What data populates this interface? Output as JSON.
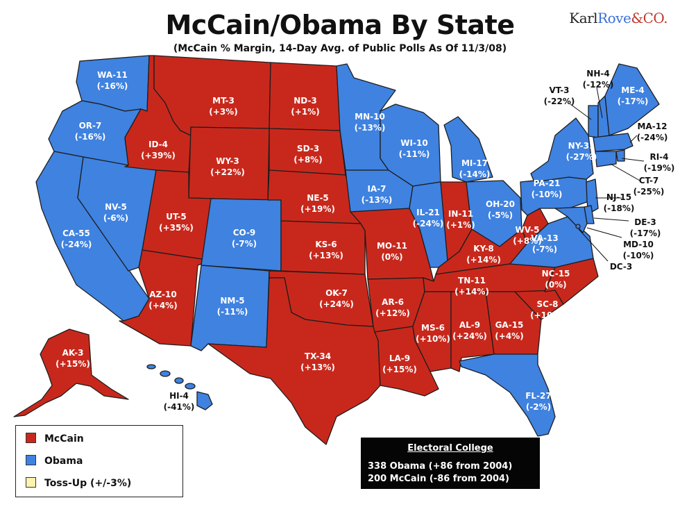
{
  "header": {
    "title": "McCain/Obama By State",
    "subtitle": "(McCain % Margin, 14-Day Avg. of Public Polls As Of 11/3/08)",
    "brand_a": "Karl",
    "brand_b": "Rove",
    "brand_c": "&CO."
  },
  "colors": {
    "mccain": "#c8281c",
    "obama": "#3f82e0",
    "tossup": "#fdf3b0"
  },
  "states": {
    "wa": {
      "label": "WA-11",
      "margin": "(-16%)",
      "winner": "obama"
    },
    "or": {
      "label": "OR-7",
      "margin": "(-16%)",
      "winner": "obama"
    },
    "ca": {
      "label": "CA-55",
      "margin": "(-24%)",
      "winner": "obama"
    },
    "nv": {
      "label": "NV-5",
      "margin": "(-6%)",
      "winner": "obama"
    },
    "id": {
      "label": "ID-4",
      "margin": "(+39%)",
      "winner": "mccain"
    },
    "mt": {
      "label": "MT-3",
      "margin": "(+3%)",
      "winner": "mccain"
    },
    "wy": {
      "label": "WY-3",
      "margin": "(+22%)",
      "winner": "mccain"
    },
    "ut": {
      "label": "UT-5",
      "margin": "(+35%)",
      "winner": "mccain"
    },
    "az": {
      "label": "AZ-10",
      "margin": "(+4%)",
      "winner": "mccain"
    },
    "co": {
      "label": "CO-9",
      "margin": "(-7%)",
      "winner": "obama"
    },
    "nm": {
      "label": "NM-5",
      "margin": "(-11%)",
      "winner": "obama"
    },
    "nd": {
      "label": "ND-3",
      "margin": "(+1%)",
      "winner": "mccain"
    },
    "sd": {
      "label": "SD-3",
      "margin": "(+8%)",
      "winner": "mccain"
    },
    "ne": {
      "label": "NE-5",
      "margin": "(+19%)",
      "winner": "mccain"
    },
    "ks": {
      "label": "KS-6",
      "margin": "(+13%)",
      "winner": "mccain"
    },
    "ok": {
      "label": "OK-7",
      "margin": "(+24%)",
      "winner": "mccain"
    },
    "tx": {
      "label": "TX-34",
      "margin": "(+13%)",
      "winner": "mccain"
    },
    "mn": {
      "label": "MN-10",
      "margin": "(-13%)",
      "winner": "obama"
    },
    "ia": {
      "label": "IA-7",
      "margin": "(-13%)",
      "winner": "obama"
    },
    "mo": {
      "label": "MO-11",
      "margin": "(0%)",
      "winner": "mccain"
    },
    "ar": {
      "label": "AR-6",
      "margin": "(+12%)",
      "winner": "mccain"
    },
    "la": {
      "label": "LA-9",
      "margin": "(+15%)",
      "winner": "mccain"
    },
    "wi": {
      "label": "WI-10",
      "margin": "(-11%)",
      "winner": "obama"
    },
    "il": {
      "label": "IL-21",
      "margin": "(-24%)",
      "winner": "obama"
    },
    "mi": {
      "label": "MI-17",
      "margin": "(-14%)",
      "winner": "obama"
    },
    "in": {
      "label": "IN-11",
      "margin": "(+1%)",
      "winner": "mccain"
    },
    "oh": {
      "label": "OH-20",
      "margin": "(-5%)",
      "winner": "obama"
    },
    "ky": {
      "label": "KY-8",
      "margin": "(+14%)",
      "winner": "mccain"
    },
    "tn": {
      "label": "TN-11",
      "margin": "(+14%)",
      "winner": "mccain"
    },
    "ms": {
      "label": "MS-6",
      "margin": "(+10%)",
      "winner": "mccain"
    },
    "al": {
      "label": "AL-9",
      "margin": "(+24%)",
      "winner": "mccain"
    },
    "ga": {
      "label": "GA-15",
      "margin": "(+4%)",
      "winner": "mccain"
    },
    "fl": {
      "label": "FL-27",
      "margin": "(-2%)",
      "winner": "obama"
    },
    "sc": {
      "label": "SC-8",
      "margin": "(+10%)",
      "winner": "mccain"
    },
    "nc": {
      "label": "NC-15",
      "margin": "(0%)",
      "winner": "mccain"
    },
    "va": {
      "label": "VA-13",
      "margin": "(-7%)",
      "winner": "obama"
    },
    "wv": {
      "label": "WV-5",
      "margin": "(+8%)",
      "winner": "mccain"
    },
    "pa": {
      "label": "PA-21",
      "margin": "(-10%)",
      "winner": "obama"
    },
    "ny": {
      "label": "NY-31",
      "margin": "(-27%)",
      "winner": "obama"
    },
    "vt": {
      "label": "VT-3",
      "margin": "(-22%)",
      "winner": "obama"
    },
    "nh": {
      "label": "NH-4",
      "margin": "(-12%)",
      "winner": "obama"
    },
    "me": {
      "label": "ME-4",
      "margin": "(-17%)",
      "winner": "obama"
    },
    "ma": {
      "label": "MA-12",
      "margin": "(-24%)",
      "winner": "obama"
    },
    "ri": {
      "label": "RI-4",
      "margin": "(-19%)",
      "winner": "obama"
    },
    "ct": {
      "label": "CT-7",
      "margin": "(-25%)",
      "winner": "obama"
    },
    "nj": {
      "label": "NJ-15",
      "margin": "(-18%)",
      "winner": "obama"
    },
    "de": {
      "label": "DE-3",
      "margin": "(-17%)",
      "winner": "obama"
    },
    "md": {
      "label": "MD-10",
      "margin": "(-10%)",
      "winner": "obama"
    },
    "dc": {
      "label": "DC-3",
      "margin": "",
      "winner": "obama"
    },
    "ak": {
      "label": "AK-3",
      "margin": "(+15%)",
      "winner": "mccain"
    },
    "hi": {
      "label": "HI-4",
      "margin": "(-41%)",
      "winner": "obama"
    }
  },
  "legend": {
    "mccain": "McCain",
    "obama": "Obama",
    "tossup": "Toss-Up (+/-3%)"
  },
  "electoral_college": {
    "heading": "Electoral College",
    "obama_line": "338 Obama  (+86 from 2004)",
    "mccain_line": "200 McCain (-86 from 2004)"
  }
}
